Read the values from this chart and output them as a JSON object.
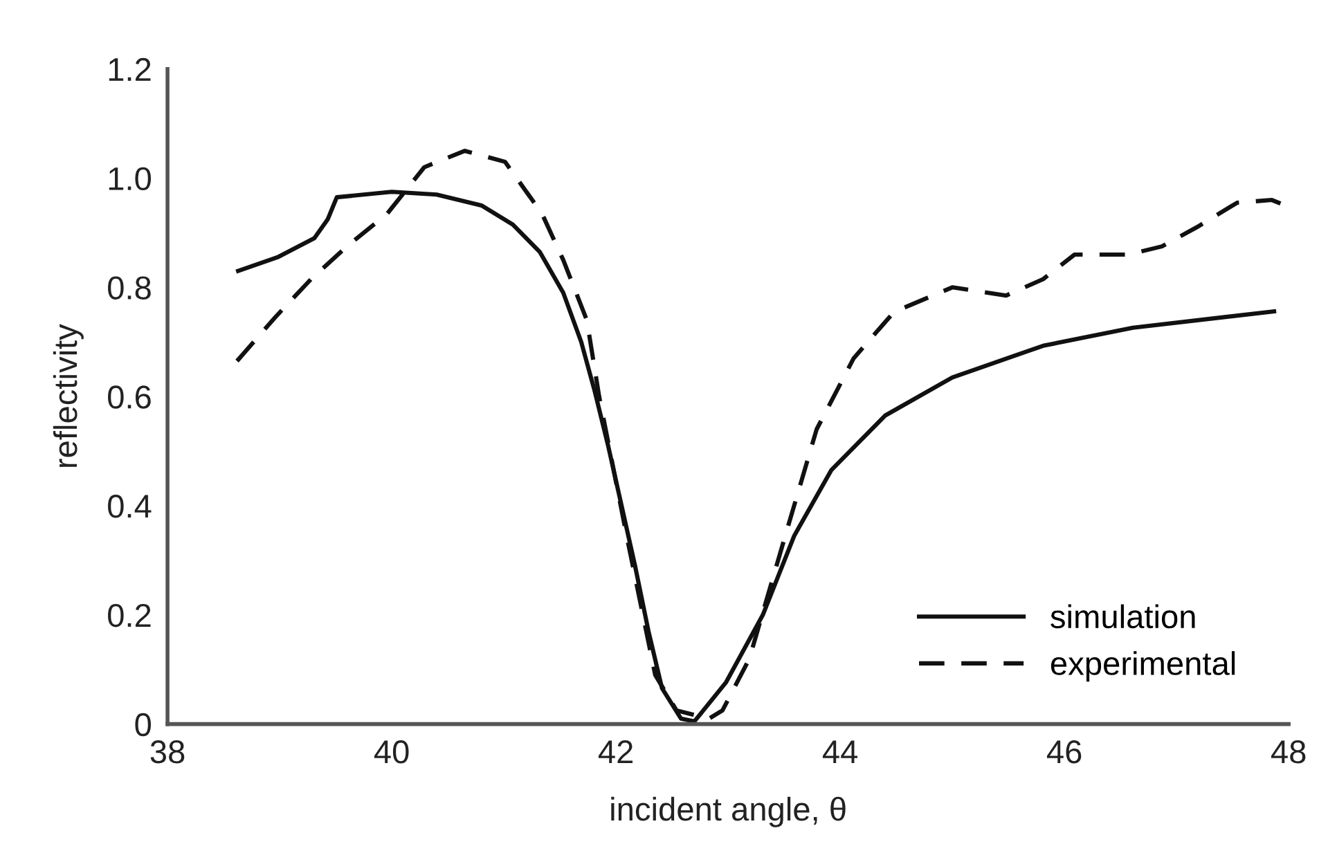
{
  "chart_data": {
    "type": "line",
    "xlabel": "incident angle, θ",
    "ylabel": "reflectivity",
    "xlim": [
      38,
      48
    ],
    "ylim": [
      0,
      1.2
    ],
    "xticks": [
      38,
      40,
      42,
      44,
      46,
      48
    ],
    "yticks": [
      {
        "value": 0,
        "label": "0"
      },
      {
        "value": 0.2,
        "label": "0.2"
      },
      {
        "value": 0.4,
        "label": "0.4"
      },
      {
        "value": 0.6,
        "label": "0.6"
      },
      {
        "value": 0.8,
        "label": "0.8"
      },
      {
        "value": 1.0,
        "label": "1.0"
      },
      {
        "value": 1.2,
        "label": "1.2"
      }
    ],
    "grid": false,
    "legend": "bottom right",
    "marker": "none",
    "series": [
      {
        "name": "simulation",
        "color": "#111111",
        "line_style": "solid",
        "x": [
          38.63,
          38.98,
          39.31,
          39.43,
          39.51,
          40.0,
          40.4,
          40.8,
          41.08,
          41.32,
          41.53,
          41.69,
          41.81,
          41.93,
          42.05,
          42.17,
          42.29,
          42.41,
          42.58,
          42.7,
          42.98,
          43.31,
          43.59,
          43.92,
          44.4,
          45.0,
          45.81,
          46.61,
          47.87
        ],
        "values": [
          0.83,
          0.855,
          0.89,
          0.925,
          0.965,
          0.975,
          0.97,
          0.95,
          0.915,
          0.865,
          0.79,
          0.7,
          0.61,
          0.51,
          0.4,
          0.29,
          0.17,
          0.066,
          0.01,
          0.005,
          0.076,
          0.2,
          0.345,
          0.465,
          0.565,
          0.635,
          0.693,
          0.726,
          0.756
        ]
      },
      {
        "name": "experimental",
        "color": "#111111",
        "line_style": "dashed",
        "x": [
          38.62,
          38.96,
          39.28,
          39.6,
          39.96,
          40.29,
          40.65,
          41.01,
          41.34,
          41.53,
          41.74,
          41.85,
          42.1,
          42.35,
          42.54,
          42.83,
          42.95,
          43.19,
          43.51,
          43.79,
          44.12,
          44.48,
          45.0,
          45.48,
          45.81,
          46.09,
          46.57,
          46.87,
          47.18,
          47.54,
          47.85,
          47.97
        ],
        "values": [
          0.665,
          0.745,
          0.815,
          0.875,
          0.935,
          1.02,
          1.05,
          1.03,
          0.935,
          0.85,
          0.74,
          0.6,
          0.34,
          0.09,
          0.025,
          0.01,
          0.025,
          0.12,
          0.345,
          0.54,
          0.67,
          0.755,
          0.8,
          0.785,
          0.815,
          0.86,
          0.86,
          0.875,
          0.91,
          0.955,
          0.96,
          0.95
        ]
      }
    ]
  }
}
